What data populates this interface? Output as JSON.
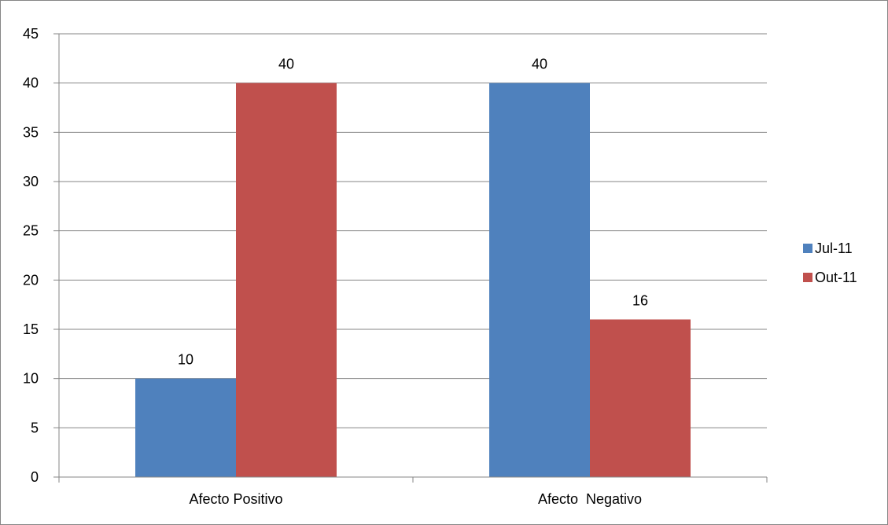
{
  "chart_data": {
    "type": "bar",
    "title": "",
    "xlabel": "",
    "ylabel": "",
    "categories": [
      "Afecto Positivo",
      "Afecto  Negativo"
    ],
    "series": [
      {
        "name": "Jul-11",
        "color": "#4F81BD",
        "values": [
          10,
          40
        ]
      },
      {
        "name": "Out-11",
        "color": "#C0504D",
        "values": [
          40,
          16
        ]
      }
    ],
    "data_labels": [
      [
        "10",
        "40"
      ],
      [
        "40",
        "16"
      ]
    ],
    "ylim": [
      0,
      45
    ],
    "y_ticks": [
      "0",
      "5",
      "10",
      "15",
      "20",
      "25",
      "30",
      "35",
      "40",
      "45"
    ],
    "grid": true,
    "legend_position": "right"
  }
}
